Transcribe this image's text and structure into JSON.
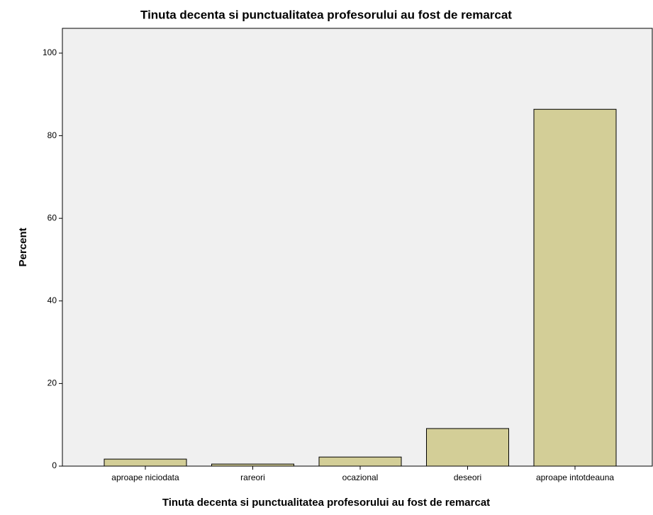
{
  "chart_data": {
    "type": "bar",
    "title": "Tinuta decenta si punctualitatea profesorului au fost de remarcat",
    "x_label": "Tinuta decenta si punctualitatea profesorului au fost de remarcat",
    "y_label": "Percent",
    "categories": [
      "aproape niciodata",
      "rareori",
      "ocazional",
      "deseori",
      "aproape intotdeauna"
    ],
    "values": [
      1.7,
      0.5,
      2.2,
      9.1,
      86.4
    ],
    "color": "#d3ce97",
    "ylim": [
      0,
      106
    ],
    "yticks": [
      0,
      20,
      40,
      60,
      80,
      100
    ],
    "grid": false
  }
}
